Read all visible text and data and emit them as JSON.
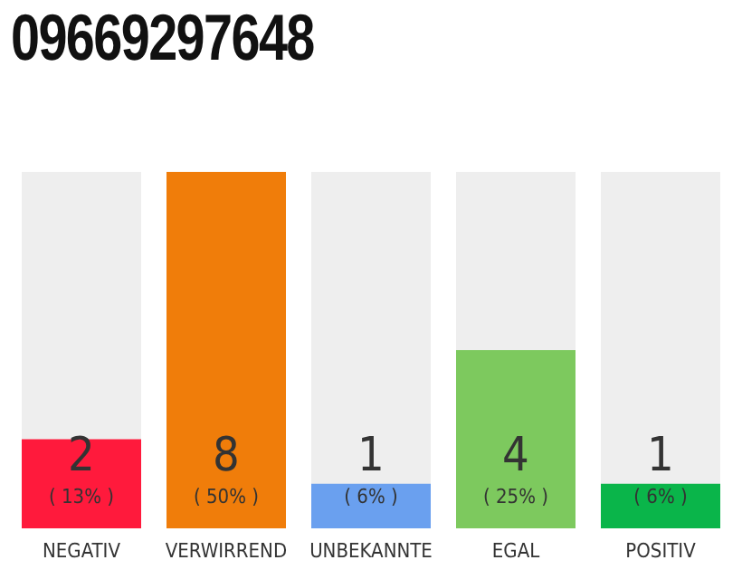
{
  "chart_data": {
    "type": "bar",
    "title": "09669297648",
    "categories": [
      "NEGATIV",
      "VERWIRREND",
      "UNBEKANNTE",
      "EGAL",
      "POSITIV"
    ],
    "values": [
      2,
      8,
      1,
      4,
      1
    ],
    "colors": [
      "#ff1a3c",
      "#f07d0a",
      "#6aa0ef",
      "#7dc95e",
      "#0ab54a"
    ],
    "data_labels": true,
    "annotations": [
      "( 13% )",
      "( 50% )",
      "( 6% )",
      "( 25% )",
      "( 6% )"
    ],
    "grid": false,
    "legend": false
  }
}
